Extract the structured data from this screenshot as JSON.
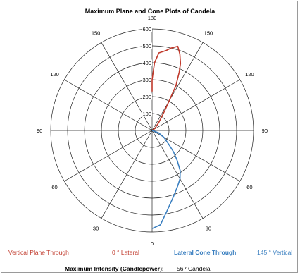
{
  "chart_data": {
    "type": "polar-line",
    "title": "Maximum Plane and Cone Plots of Candela",
    "radial_ticks": [
      "100",
      "200",
      "300",
      "400",
      "500",
      "600"
    ],
    "radial_range": [
      0,
      600
    ],
    "angle_labels": [
      {
        "label": "180",
        "angle": 180
      },
      {
        "label": "150",
        "angle": 150
      },
      {
        "label": "150",
        "angle": -150
      },
      {
        "label": "120",
        "angle": 120
      },
      {
        "label": "120",
        "angle": -120
      },
      {
        "label": "90",
        "angle": 90
      },
      {
        "label": "90",
        "angle": -90
      },
      {
        "label": "60",
        "angle": 60
      },
      {
        "label": "60",
        "angle": -60
      },
      {
        "label": "30",
        "angle": 30
      },
      {
        "label": "30",
        "angle": -30
      },
      {
        "label": "0",
        "angle": 0
      }
    ],
    "grid": true,
    "series": [
      {
        "name": "Vertical Plane Through",
        "color": "#c0392b",
        "points": [
          [
            90,
            0
          ],
          [
            125,
            20
          ],
          [
            140,
            60
          ],
          [
            145,
            100
          ],
          [
            148,
            150
          ],
          [
            150,
            200
          ],
          [
            152,
            300
          ],
          [
            155,
            380
          ],
          [
            157,
            430
          ],
          [
            160,
            480
          ],
          [
            163,
            520
          ],
          [
            167,
            500
          ],
          [
            170,
            480
          ],
          [
            175,
            460
          ],
          [
            178,
            400
          ],
          [
            180,
            300
          ],
          [
            180,
            230
          ]
        ]
      },
      {
        "name": "Lateral Cone Through",
        "color": "#3a7fc0",
        "points": [
          [
            90,
            0
          ],
          [
            70,
            40
          ],
          [
            60,
            80
          ],
          [
            50,
            130
          ],
          [
            45,
            180
          ],
          [
            40,
            230
          ],
          [
            35,
            290
          ],
          [
            30,
            330
          ],
          [
            25,
            360
          ],
          [
            18,
            410
          ],
          [
            10,
            490
          ],
          [
            5,
            560
          ],
          [
            0,
            580
          ]
        ]
      }
    ]
  },
  "legend": {
    "left_series": "Vertical Plane Through",
    "left_value": "0 ° Lateral",
    "right_series": "Lateral Cone Through",
    "right_value": "145 ° Vertical"
  },
  "footer": {
    "label": "Maximum Intensity (Candlepower):",
    "value": "567",
    "unit": "Candela"
  }
}
